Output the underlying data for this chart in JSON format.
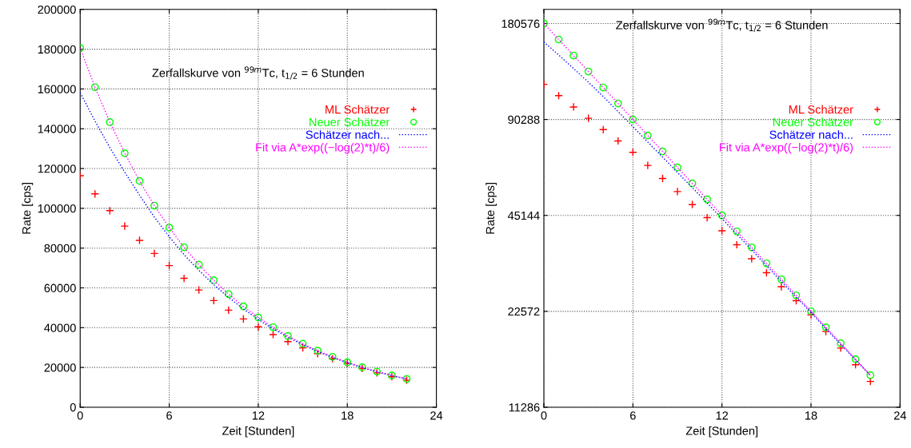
{
  "chart_data": [
    {
      "type": "scatter",
      "xlabel": "Zeit [Stunden]",
      "ylabel": "Rate [cps]",
      "annotations": [
        "Zerfallskurve von $^{99m}$Tc, t$_{1/2}$ = 6 Stunden"
      ],
      "x": [
        0,
        1,
        2,
        3,
        4,
        5,
        6,
        7,
        8,
        9,
        10,
        11,
        12,
        13,
        14,
        15,
        16,
        17,
        18,
        19,
        20,
        21,
        22
      ],
      "xlim": [
        0,
        24
      ],
      "xticks": [
        0,
        6,
        12,
        18,
        24
      ],
      "ylim": [
        0,
        200000
      ],
      "yticks": [
        0,
        20000,
        40000,
        60000,
        80000,
        100000,
        120000,
        140000,
        160000,
        180000,
        200000
      ],
      "grid": true,
      "legend": "top right",
      "series": [
        {
          "name": "ML Schätzer",
          "color": "#ff0000",
          "marker": "cross",
          "values": [
            116400,
            107250,
            98820,
            91050,
            83900,
            77300,
            71200,
            64790,
            58950,
            53640,
            48810,
            44410,
            40400,
            36510,
            33000,
            29830,
            26960,
            24370,
            22000,
            19510,
            17300,
            15340,
            13600
          ]
        },
        {
          "name": "Neuer Schätzer",
          "color": "#00ff00",
          "marker": "circle",
          "values": [
            180576,
            160874,
            143322,
            127686,
            113755,
            101344,
            90288,
            80437,
            71661,
            63843,
            56878,
            50672,
            45144,
            40218,
            35830,
            31921,
            28439,
            25336,
            22572,
            20109,
            17915,
            15961,
            14219
          ]
        },
        {
          "name": "Schätzer nach...",
          "color": "#0000ff",
          "type": "line",
          "line_style": "dotted",
          "marker": "none",
          "values": [
            158100,
            143900,
            130500,
            118200,
            106600,
            95600,
            85700,
            76700,
            68800,
            61600,
            55200,
            49400,
            44100,
            39400,
            35200,
            31400,
            28000,
            25000,
            22400,
            19900,
            17800,
            15900,
            14200
          ]
        },
        {
          "name": "Fit via A*exp((−log(2)*t)/6)",
          "color": "#ff00ff",
          "type": "line",
          "line_style": "dotted",
          "marker": "none",
          "values": [
            180576,
            160874,
            143322,
            127686,
            113755,
            101344,
            90288,
            80437,
            71661,
            63843,
            56878,
            50672,
            45144,
            40218,
            35830,
            31921,
            28439,
            25336,
            22572,
            20109,
            17915,
            15961,
            14219
          ]
        }
      ]
    },
    {
      "type": "scatter",
      "xlabel": "Zeit [Stunden]",
      "ylabel": "Rate [cps]",
      "annotations": [
        "Zerfallskurve von $^{99m}$Tc, t$_{1/2}$ = 6 Stunden"
      ],
      "x": [
        0,
        1,
        2,
        3,
        4,
        5,
        6,
        7,
        8,
        9,
        10,
        11,
        12,
        13,
        14,
        15,
        16,
        17,
        18,
        19,
        20,
        21,
        22
      ],
      "xlim": [
        0,
        24
      ],
      "xticks": [
        0,
        6,
        12,
        18,
        24
      ],
      "log": "y",
      "ylim": [
        11286,
        200000
      ],
      "yticks": [
        11286,
        22572,
        45144,
        90288,
        180576
      ],
      "grid": true,
      "legend": "top right",
      "series": [
        {
          "name": "ML Schätzer",
          "color": "#ff0000",
          "marker": "cross",
          "values": [
            116400,
            107250,
            98820,
            91050,
            83900,
            77300,
            71200,
            64790,
            58950,
            53640,
            48810,
            44410,
            40400,
            36510,
            33000,
            29830,
            26960,
            24370,
            22000,
            19510,
            17300,
            15340,
            13600
          ]
        },
        {
          "name": "Neuer Schätzer",
          "color": "#00ff00",
          "marker": "circle",
          "values": [
            180576,
            160874,
            143322,
            127686,
            113755,
            101344,
            90288,
            80437,
            71661,
            63843,
            56878,
            50672,
            45144,
            40218,
            35830,
            31921,
            28439,
            25336,
            22572,
            20109,
            17915,
            15961,
            14219
          ]
        },
        {
          "name": "Schätzer nach...",
          "color": "#0000ff",
          "type": "line",
          "line_style": "dotted",
          "marker": "none",
          "values": [
            158100,
            143900,
            130500,
            118200,
            106600,
            95600,
            85700,
            76700,
            68800,
            61600,
            55200,
            49400,
            44100,
            39400,
            35200,
            31400,
            28000,
            25000,
            22400,
            19900,
            17800,
            15900,
            14200
          ]
        },
        {
          "name": "Fit via A*exp((−log(2)*t)/6)",
          "color": "#ff00ff",
          "type": "line",
          "line_style": "dotted",
          "marker": "none",
          "values": [
            180576,
            160874,
            143322,
            127686,
            113755,
            101344,
            90288,
            80437,
            71661,
            63843,
            56878,
            50672,
            45144,
            40218,
            35830,
            31921,
            28439,
            25336,
            22572,
            20109,
            17915,
            15961,
            14219
          ]
        }
      ]
    }
  ]
}
